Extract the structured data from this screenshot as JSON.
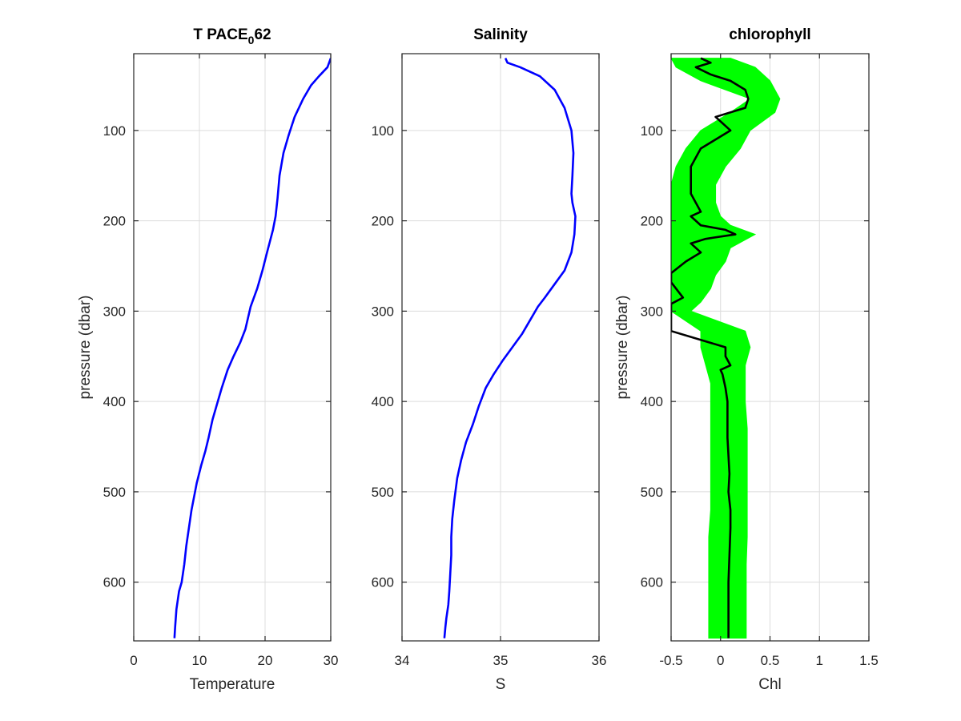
{
  "chart_data": [
    {
      "type": "line",
      "title": "T PACE",
      "title_subscript": "0",
      "title_suffix": "62",
      "xlabel": "Temperature",
      "ylabel": "pressure (dbar)",
      "xlim": [
        0,
        30
      ],
      "ylim": [
        15,
        665
      ],
      "y_reversed": true,
      "grid": true,
      "xticks": [
        0,
        10,
        20,
        30
      ],
      "yticks": [
        100,
        200,
        300,
        400,
        500,
        600
      ],
      "series": [
        {
          "color": "#0000ff",
          "x": [
            30.0,
            29.5,
            28.2,
            27.0,
            25.8,
            24.5,
            23.6,
            22.8,
            22.2,
            21.9,
            21.6,
            21.2,
            20.3,
            19.6,
            18.8,
            17.8,
            17.0,
            16.2,
            15.2,
            14.3,
            13.4,
            12.8,
            12.0,
            11.4,
            10.9,
            10.3,
            9.6,
            9.2,
            8.8,
            8.4,
            8.0,
            7.7,
            7.3,
            6.9,
            6.7,
            6.5,
            6.4,
            6.3,
            6.2
          ],
          "y": [
            20,
            30,
            40,
            50,
            65,
            85,
            105,
            125,
            150,
            175,
            195,
            210,
            235,
            255,
            275,
            295,
            320,
            335,
            350,
            365,
            385,
            400,
            420,
            440,
            455,
            470,
            490,
            505,
            520,
            540,
            560,
            580,
            600,
            610,
            620,
            630,
            640,
            650,
            662
          ]
        }
      ]
    },
    {
      "type": "line",
      "title": "Salinity",
      "xlabel": "S",
      "ylabel": "",
      "xlim": [
        34,
        36
      ],
      "ylim": [
        15,
        665
      ],
      "y_reversed": true,
      "grid": true,
      "xticks": [
        34,
        35,
        36
      ],
      "yticks": [
        100,
        200,
        300,
        400,
        500,
        600
      ],
      "series": [
        {
          "color": "#ff0000",
          "x": [
            35.05,
            35.07,
            35.2,
            35.4,
            35.55,
            35.65,
            35.72,
            35.74,
            35.73,
            35.72,
            35.73,
            35.76,
            35.75,
            35.72,
            35.65,
            35.55,
            35.45,
            35.38,
            35.3,
            35.22,
            35.12,
            35.02,
            34.93,
            34.85,
            34.78,
            34.72,
            34.65,
            34.6,
            34.56,
            34.53,
            34.51,
            34.5,
            34.5,
            34.49,
            34.48,
            34.47,
            34.45,
            34.44,
            34.43
          ],
          "y": [
            20,
            25,
            30,
            40,
            55,
            75,
            100,
            125,
            150,
            170,
            180,
            195,
            215,
            235,
            255,
            270,
            285,
            295,
            310,
            325,
            340,
            355,
            370,
            385,
            405,
            425,
            445,
            465,
            485,
            510,
            530,
            550,
            570,
            590,
            610,
            625,
            640,
            650,
            662
          ]
        },
        {
          "color": "#0000ff",
          "x": [
            35.05,
            35.07,
            35.2,
            35.4,
            35.55,
            35.65,
            35.72,
            35.74,
            35.73,
            35.72,
            35.73,
            35.76,
            35.75,
            35.72,
            35.65,
            35.55,
            35.45,
            35.38,
            35.3,
            35.22,
            35.12,
            35.02,
            34.93,
            34.85,
            34.78,
            34.72,
            34.65,
            34.6,
            34.56,
            34.53,
            34.51,
            34.5,
            34.5,
            34.49,
            34.48,
            34.47,
            34.45,
            34.44,
            34.43
          ],
          "y": [
            20,
            25,
            30,
            40,
            55,
            75,
            100,
            125,
            150,
            170,
            180,
            195,
            215,
            235,
            255,
            270,
            285,
            295,
            310,
            325,
            340,
            355,
            370,
            385,
            405,
            425,
            445,
            465,
            485,
            510,
            530,
            550,
            570,
            590,
            610,
            625,
            640,
            650,
            662
          ]
        }
      ]
    },
    {
      "type": "line",
      "title": "chlorophyll",
      "xlabel": "Chl",
      "ylabel": "pressure (dbar)",
      "xlim": [
        -0.5,
        1.5
      ],
      "ylim": [
        15,
        665
      ],
      "y_reversed": true,
      "grid": true,
      "xticks": [
        -0.5,
        0,
        0.5,
        1,
        1.5
      ],
      "yticks": [
        100,
        200,
        300,
        400,
        500,
        600
      ],
      "series": [
        {
          "color": "#00ff00",
          "role": "raw",
          "upper_x": [
            0.1,
            0.35,
            0.5,
            0.6,
            0.55,
            0.3,
            0.2,
            0.05,
            -0.05,
            -0.05,
            0.0,
            0.1,
            0.35,
            0.1,
            0.05,
            -0.05,
            -0.1,
            -0.2,
            -0.3,
            0.25,
            0.3,
            0.25,
            0.25,
            0.25,
            0.27,
            0.27,
            0.27,
            0.27,
            0.27,
            0.26,
            0.26,
            0.26,
            0.26
          ],
          "lower_x": [
            -0.5,
            -0.45,
            -0.2,
            0.3,
            0.1,
            -0.2,
            -0.35,
            -0.45,
            -0.5,
            -0.5,
            -0.5,
            -0.5,
            -0.5,
            -0.5,
            -0.5,
            -0.5,
            -0.5,
            -0.5,
            -0.5,
            -0.2,
            -0.2,
            -0.15,
            -0.1,
            -0.1,
            -0.1,
            -0.1,
            -0.1,
            -0.1,
            -0.12,
            -0.12,
            -0.12,
            -0.12,
            -0.12
          ],
          "y": [
            20,
            30,
            45,
            65,
            80,
            100,
            120,
            140,
            160,
            180,
            195,
            205,
            215,
            230,
            245,
            260,
            275,
            290,
            300,
            322,
            340,
            360,
            380,
            400,
            430,
            460,
            490,
            520,
            550,
            580,
            610,
            640,
            662
          ]
        },
        {
          "color": "#000000",
          "role": "smoothed",
          "x": [
            -0.2,
            -0.1,
            -0.25,
            -0.1,
            0.1,
            0.25,
            0.28,
            0.25,
            0.1,
            -0.05,
            0.0,
            0.1,
            -0.05,
            -0.2,
            -0.25,
            -0.3,
            -0.3,
            -0.3,
            -0.25,
            -0.2,
            -0.3,
            -0.25,
            -0.2,
            0.05,
            0.15,
            -0.15,
            -0.3,
            -0.2,
            -0.35,
            -0.5,
            -0.5,
            -0.38,
            -0.5,
            -0.5,
            -0.5,
            0.05,
            0.05,
            0.1,
            0.0,
            0.02,
            0.05,
            0.07,
            0.07,
            0.07,
            0.08,
            0.09,
            0.08,
            0.1,
            0.1,
            0.09,
            0.08,
            0.08,
            0.08
          ],
          "y": [
            20,
            25,
            30,
            38,
            45,
            55,
            65,
            75,
            80,
            85,
            90,
            100,
            110,
            120,
            130,
            140,
            155,
            170,
            180,
            190,
            195,
            200,
            205,
            210,
            215,
            220,
            225,
            235,
            245,
            258,
            268,
            285,
            292,
            300,
            322,
            340,
            350,
            360,
            365,
            370,
            385,
            400,
            420,
            440,
            460,
            480,
            500,
            520,
            540,
            570,
            600,
            630,
            662
          ]
        }
      ]
    }
  ]
}
